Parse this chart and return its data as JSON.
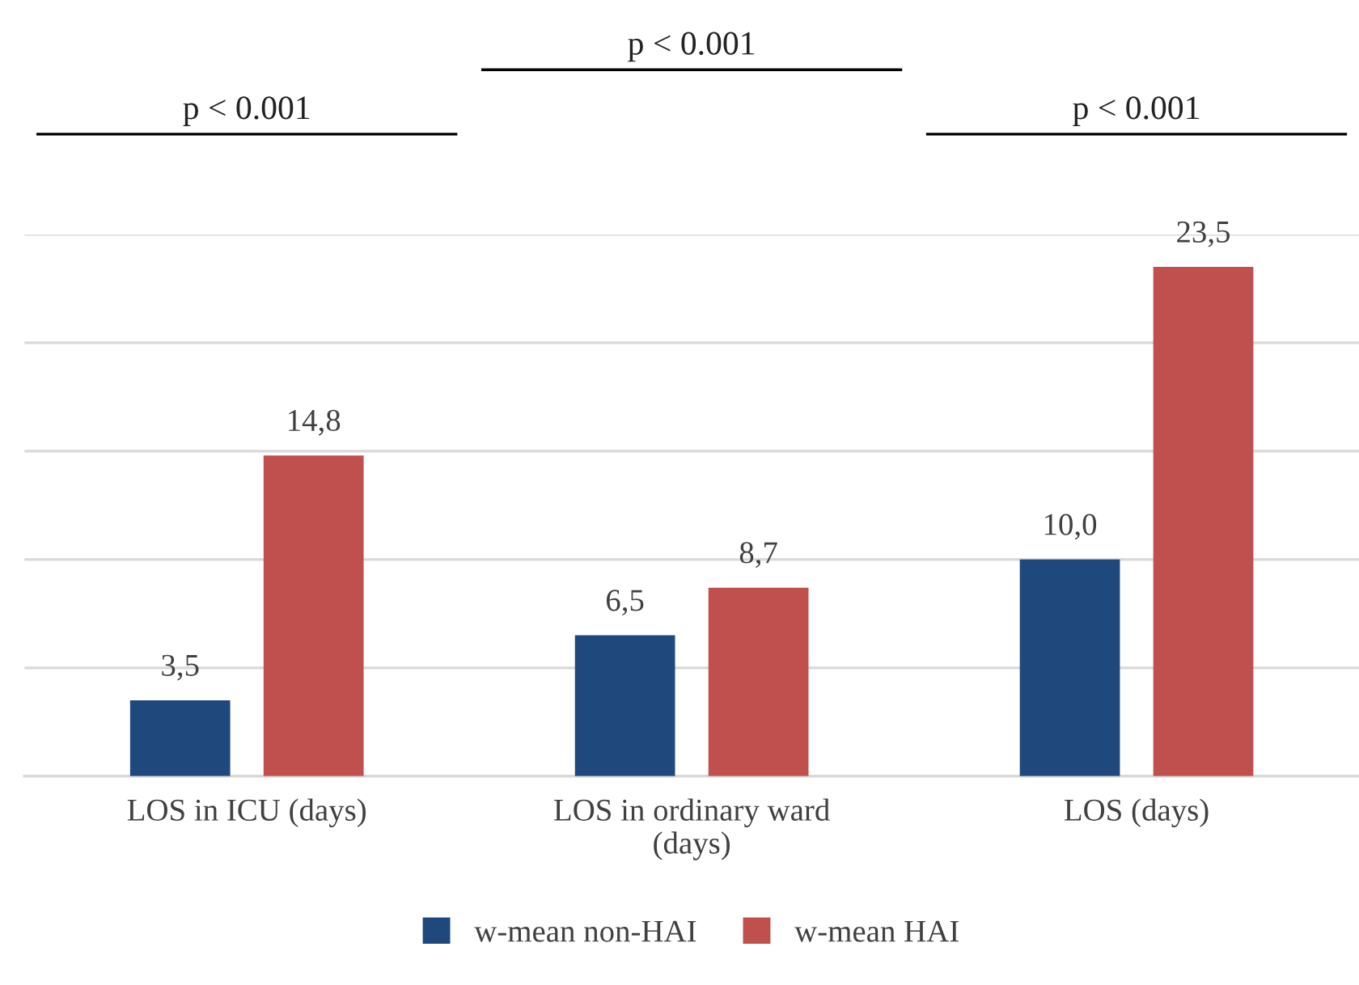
{
  "chart_data": {
    "type": "bar",
    "categories": [
      "LOS in ICU (days)",
      "LOS in ordinary ward\n(days)",
      "LOS (days)"
    ],
    "series": [
      {
        "name": "w-mean non-HAI",
        "color": "#1f497d",
        "values": [
          3.5,
          6.5,
          10.0
        ],
        "value_labels": [
          "3,5",
          "6,5",
          "10,0"
        ]
      },
      {
        "name": "w-mean HAI",
        "color": "#c0504d",
        "values": [
          14.8,
          8.7,
          23.5
        ],
        "value_labels": [
          "14,8",
          "8,7",
          "23,5"
        ]
      }
    ],
    "ylim": [
      0,
      25
    ],
    "yticks": [
      {
        "value": 0,
        "label": null
      },
      {
        "value": 5,
        "label": null
      },
      {
        "value": 10,
        "label": null
      },
      {
        "value": 15,
        "label": null
      },
      {
        "value": 20,
        "label": null
      },
      {
        "value": 25,
        "label": null
      }
    ],
    "tick_labels": "x",
    "grid": "y",
    "legend": "bottom",
    "annotations": [
      "p < 0.001",
      "p < 0.001",
      "p < 0.001"
    ]
  }
}
